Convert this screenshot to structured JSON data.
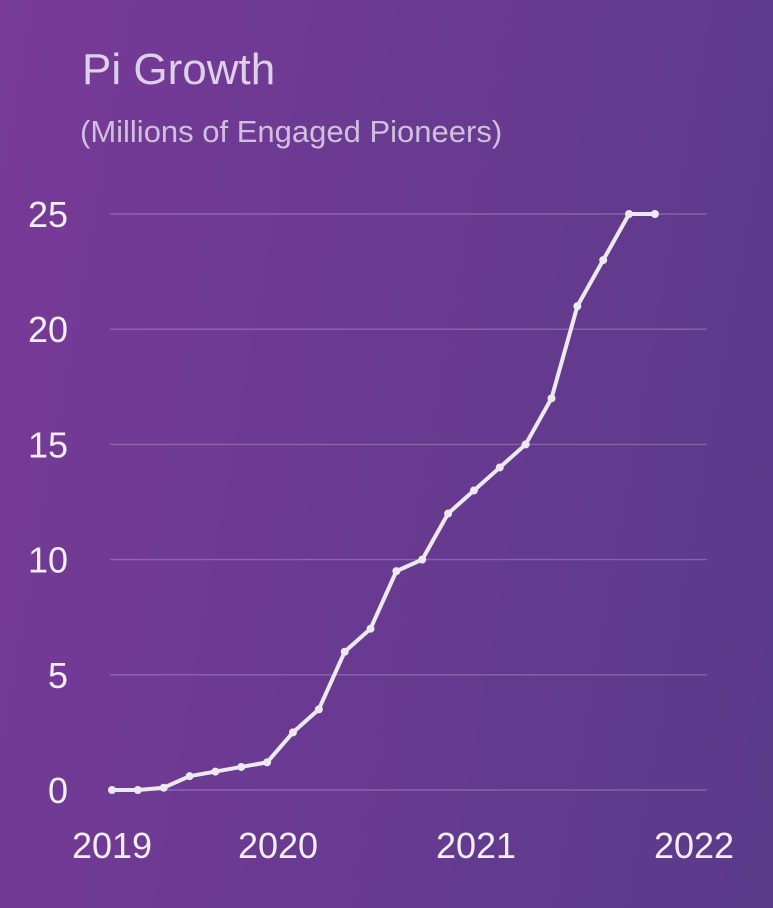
{
  "chart_data": {
    "type": "line",
    "title": "Pi Growth",
    "subtitle": "(Millions of Engaged Pioneers)",
    "xlabel": "",
    "ylabel": "",
    "ylim": [
      0,
      25
    ],
    "yticks": [
      "0",
      "5",
      "10",
      "15",
      "20",
      "25"
    ],
    "xlim": [
      2019,
      2022
    ],
    "xticks": [
      "2019",
      "2020",
      "2021",
      "2022"
    ],
    "grid": true,
    "line_color": "#eceaf0",
    "series": [
      {
        "x": [
          2019.0,
          2019.14,
          2019.28,
          2019.42,
          2019.56,
          2019.7,
          2019.84,
          2019.98,
          2020.12,
          2020.26,
          2020.4,
          2020.54,
          2020.68,
          2020.82,
          2020.96,
          2021.1,
          2021.24,
          2021.38,
          2021.52,
          2021.66,
          2021.8,
          2021.94
        ],
        "values": [
          0,
          0,
          0.1,
          0.6,
          0.8,
          1.0,
          1.2,
          2.5,
          3.5,
          6.0,
          7.0,
          9.5,
          10.0,
          12.0,
          13.0,
          14.0,
          15.0,
          17.0,
          21.0,
          23.0,
          25.0,
          25.0
        ]
      }
    ]
  }
}
